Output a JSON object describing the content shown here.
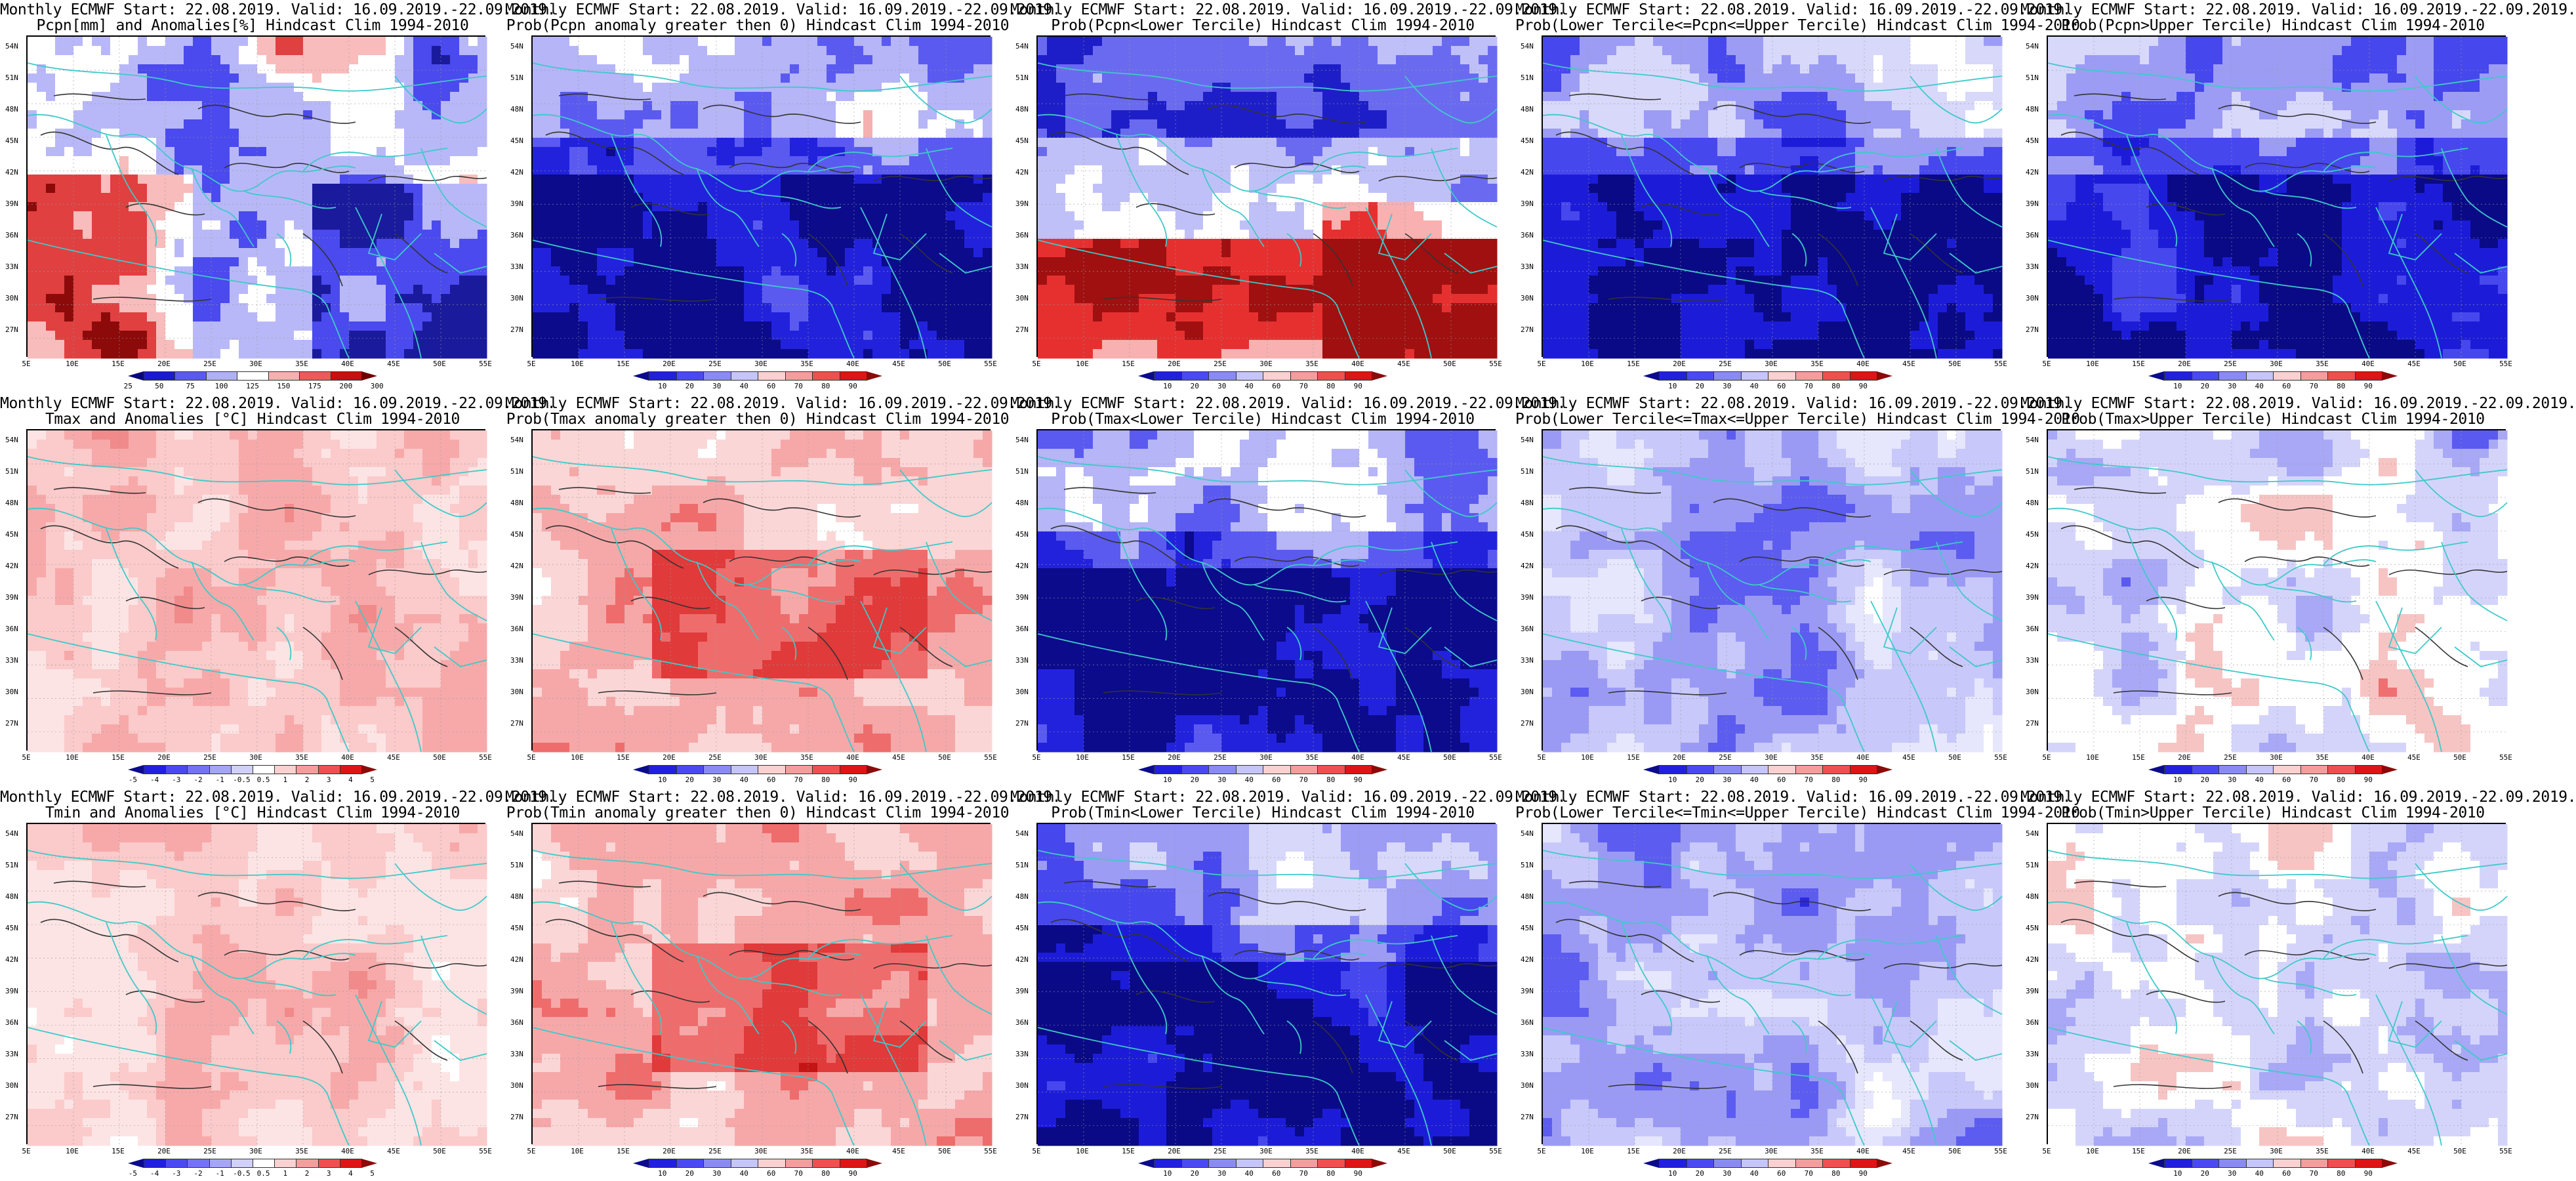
{
  "figure": {
    "lat_labels": [
      "54N",
      "51N",
      "48N",
      "45N",
      "42N",
      "39N",
      "36N",
      "33N",
      "30N",
      "27N"
    ],
    "lon_labels": [
      "5E",
      "10E",
      "15E",
      "20E",
      "25E",
      "30E",
      "35E",
      "40E",
      "45E",
      "50E",
      "55E"
    ],
    "colors": {
      "coast": "#3fc9c9",
      "contour": "#333333",
      "blue_scale": [
        "#0b0b8c",
        "#2020dd",
        "#4a4af0",
        "#8a8af5",
        "#c5c5fa"
      ],
      "red_scale": [
        "#fbd0d0",
        "#f59c9c",
        "#ee5050",
        "#dd1515",
        "#8c0a0a"
      ]
    },
    "panels": [
      {
        "id": "pcpn-anom",
        "title1": "Monthly ECMWF Start: 22.08.2019. Valid: 16.09.2019.-22.09.2019.",
        "title2": "Pcpn[mm] and Anomalies[%] Hindcast Clim 1994-2010",
        "palette": "anom-pcpn",
        "cbar_labels": [
          "25",
          "50",
          "75",
          "100",
          "125",
          "150",
          "175",
          "200",
          "300"
        ]
      },
      {
        "id": "pcpn-gt0",
        "title1": "Monthly ECMWF Start: 22.08.2019. Valid: 16.09.2019.-22.09.2019.",
        "title2": "Prob(Pcpn anomaly greater then 0) Hindcast Clim 1994-2010",
        "palette": "prob-blue",
        "cbar_labels": [
          "10",
          "20",
          "30",
          "40",
          "60",
          "70",
          "80",
          "90"
        ]
      },
      {
        "id": "pcpn-lower",
        "title1": "Monthly ECMWF Start: 22.08.2019. Valid: 16.09.2019.-22.09.2019.",
        "title2": "Prob(Pcpn<Lower Tercile) Hindcast Clim 1994-2010",
        "palette": "prob-red",
        "cbar_labels": [
          "10",
          "20",
          "30",
          "40",
          "60",
          "70",
          "80",
          "90"
        ]
      },
      {
        "id": "pcpn-middle",
        "title1": "Monthly ECMWF Start: 22.08.2019. Valid: 16.09.2019.-22.09.2019.",
        "title2": "Prob(Lower Tercile<=Pcpn<=Upper Tercile) Hindcast Clim 1994-2010",
        "palette": "prob-deepblue",
        "cbar_labels": [
          "10",
          "20",
          "30",
          "40",
          "60",
          "70",
          "80",
          "90"
        ]
      },
      {
        "id": "pcpn-upper",
        "title1": "Monthly ECMWF Start: 22.08.2019. Valid: 16.09.2019.-22.09.2019.",
        "title2": "Prob(Pcpn>Upper Tercile) Hindcast Clim 1994-2010",
        "palette": "prob-deepblue",
        "cbar_labels": [
          "10",
          "20",
          "30",
          "40",
          "60",
          "70",
          "80",
          "90"
        ]
      },
      {
        "id": "tmax-anom",
        "title1": "Monthly ECMWF Start: 22.08.2019. Valid: 16.09.2019.-22.09.2019.",
        "title2": "Tmax and Anomalies [°C] Hindcast Clim 1994-2010",
        "palette": "anom-light",
        "cbar_labels": [
          "-5",
          "-4",
          "-3",
          "-2",
          "-1",
          "-0.5",
          "0.5",
          "1",
          "2",
          "3",
          "4",
          "5"
        ]
      },
      {
        "id": "tmax-gt0",
        "title1": "Monthly ECMWF Start: 22.08.2019. Valid: 16.09.2019.-22.09.2019.",
        "title2": "Prob(Tmax anomaly greater then 0) Hindcast Clim 1994-2010",
        "palette": "prob-warm",
        "cbar_labels": [
          "10",
          "20",
          "30",
          "40",
          "60",
          "70",
          "80",
          "90"
        ]
      },
      {
        "id": "tmax-lower",
        "title1": "Monthly ECMWF Start: 22.08.2019. Valid: 16.09.2019.-22.09.2019.",
        "title2": "Prob(Tmax<Lower Tercile) Hindcast Clim 1994-2010",
        "palette": "prob-blue",
        "cbar_labels": [
          "10",
          "20",
          "30",
          "40",
          "60",
          "70",
          "80",
          "90"
        ]
      },
      {
        "id": "tmax-middle",
        "title1": "Monthly ECMWF Start: 22.08.2019. Valid: 16.09.2019.-22.09.2019.",
        "title2": "Prob(Lower Tercile<=Tmax<=Upper Tercile) Hindcast Clim 1994-2010",
        "palette": "prob-midblue",
        "cbar_labels": [
          "10",
          "20",
          "30",
          "40",
          "60",
          "70",
          "80",
          "90"
        ]
      },
      {
        "id": "tmax-upper",
        "title1": "Monthly ECMWF Start: 22.08.2019. Valid: 16.09.2019.-22.09.2019.",
        "title2": "Prob(Tmax>Upper Tercile) Hindcast Clim 1994-2010",
        "palette": "prob-mix",
        "cbar_labels": [
          "10",
          "20",
          "30",
          "40",
          "60",
          "70",
          "80",
          "90"
        ]
      },
      {
        "id": "tmin-anom",
        "title1": "Monthly ECMWF Start: 22.08.2019. Valid: 16.09.2019.-22.09.2019.",
        "title2": "Tmin and Anomalies [°C] Hindcast Clim 1994-2010",
        "palette": "anom-light",
        "cbar_labels": [
          "-5",
          "-4",
          "-3",
          "-2",
          "-1",
          "-0.5",
          "0.5",
          "1",
          "2",
          "3",
          "4",
          "5"
        ]
      },
      {
        "id": "tmin-gt0",
        "title1": "Monthly ECMWF Start: 22.08.2019. Valid: 16.09.2019.-22.09.2019.",
        "title2": "Prob(Tmin anomaly greater then 0) Hindcast Clim 1994-2010",
        "palette": "prob-warm",
        "cbar_labels": [
          "10",
          "20",
          "30",
          "40",
          "60",
          "70",
          "80",
          "90"
        ]
      },
      {
        "id": "tmin-lower",
        "title1": "Monthly ECMWF Start: 22.08.2019. Valid: 16.09.2019.-22.09.2019.",
        "title2": "Prob(Tmin<Lower Tercile) Hindcast Clim 1994-2010",
        "palette": "prob-deepblue",
        "cbar_labels": [
          "10",
          "20",
          "30",
          "40",
          "60",
          "70",
          "80",
          "90"
        ]
      },
      {
        "id": "tmin-middle",
        "title1": "Monthly ECMWF Start: 22.08.2019. Valid: 16.09.2019.-22.09.2019.",
        "title2": "Prob(Lower Tercile<=Tmin<=Upper Tercile) Hindcast Clim 1994-2010",
        "palette": "prob-midblue",
        "cbar_labels": [
          "10",
          "20",
          "30",
          "40",
          "60",
          "70",
          "80",
          "90"
        ]
      },
      {
        "id": "tmin-upper",
        "title1": "Monthly ECMWF Start: 22.08.2019. Valid: 16.09.2019.-22.09.2019.",
        "title2": "Prob(Tmin>Upper Tercile) Hindcast Clim 1994-2010",
        "palette": "prob-mix",
        "cbar_labels": [
          "10",
          "20",
          "30",
          "40",
          "60",
          "70",
          "80",
          "90"
        ]
      }
    ]
  }
}
